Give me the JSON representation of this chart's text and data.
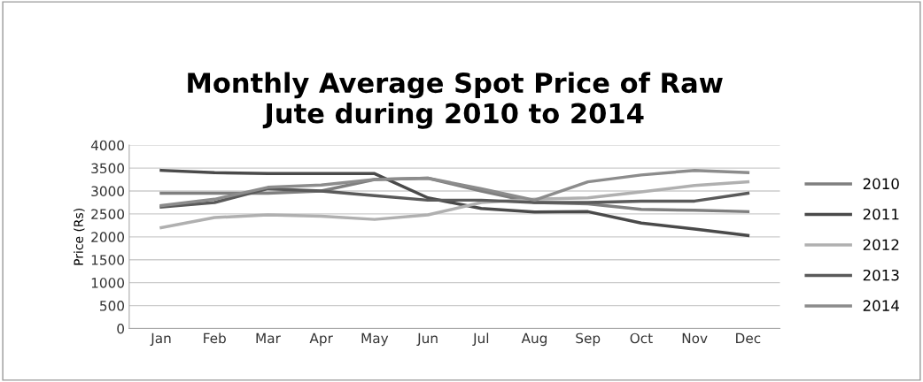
{
  "chart_data": {
    "type": "line",
    "title": "Monthly Average Spot Price of Raw\nJute during 2010 to 2014",
    "ylabel": "Price (Rs)",
    "categories": [
      "Jan",
      "Feb",
      "Mar",
      "Apr",
      "May",
      "Jun",
      "Jul",
      "Aug",
      "Sep",
      "Oct",
      "Nov",
      "Dec"
    ],
    "series": [
      {
        "name": "2010",
        "color": "#7f7f7f",
        "values": [
          2950,
          2950,
          2950,
          3000,
          3250,
          3280,
          3000,
          2750,
          2720,
          2600,
          2580,
          2550
        ]
      },
      {
        "name": "2011",
        "color": "#4a4a4a",
        "values": [
          3450,
          3400,
          3380,
          3380,
          3380,
          2850,
          2620,
          2540,
          2550,
          2300,
          2170,
          2030
        ]
      },
      {
        "name": "2012",
        "color": "#b0b0b0",
        "values": [
          2200,
          2420,
          2480,
          2450,
          2380,
          2480,
          2750,
          2820,
          2850,
          2980,
          3120,
          3200
        ]
      },
      {
        "name": "2013",
        "color": "#5a5a5a",
        "values": [
          2650,
          2750,
          3050,
          3000,
          2900,
          2800,
          2800,
          2750,
          2750,
          2780,
          2780,
          2950
        ]
      },
      {
        "name": "2014",
        "color": "#8c8c8c",
        "values": [
          2680,
          2820,
          3080,
          3130,
          3250,
          3280,
          3050,
          2800,
          3200,
          3350,
          3450,
          3400
        ]
      }
    ],
    "ylim": [
      0,
      4000
    ],
    "yticks": [
      0,
      500,
      1000,
      1500,
      2000,
      2500,
      3000,
      3500,
      4000
    ],
    "grid": "y",
    "legend": "right",
    "marker": "none",
    "line_style": "solid"
  }
}
